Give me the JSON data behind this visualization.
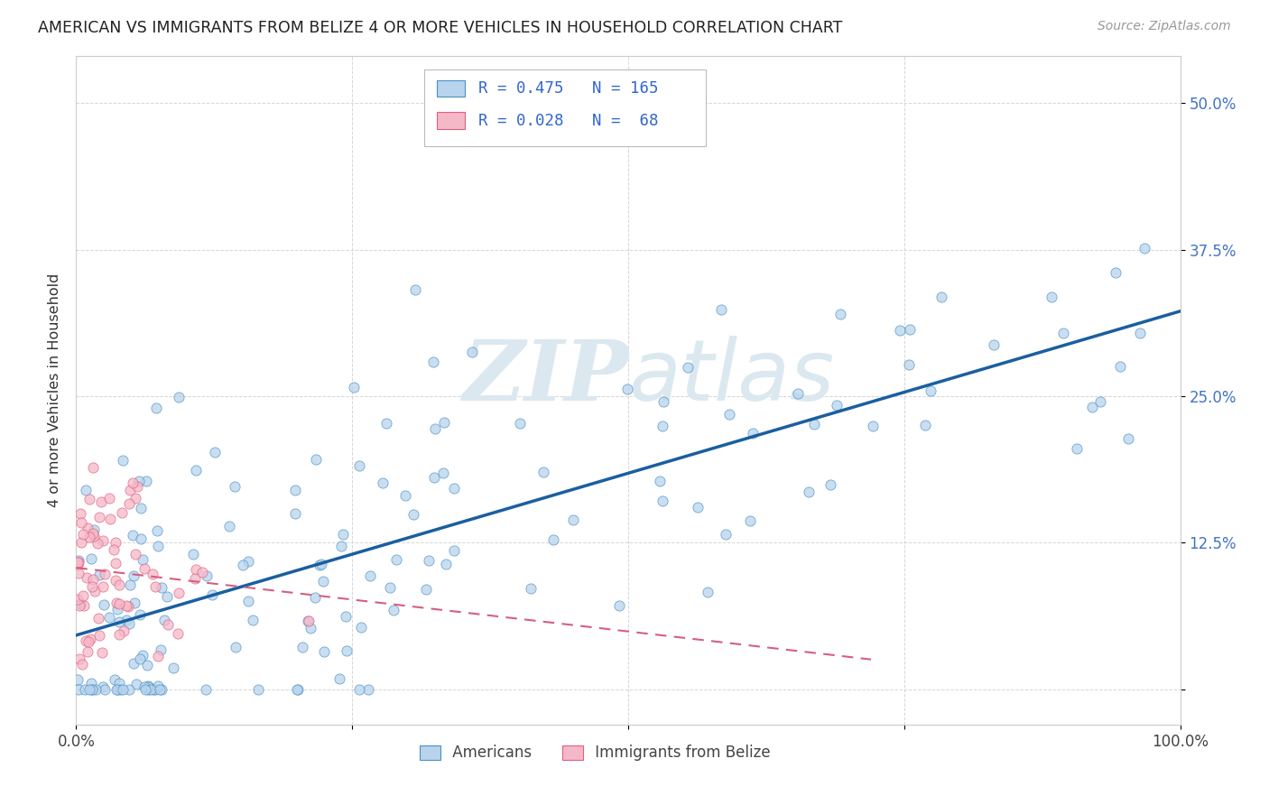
{
  "title": "AMERICAN VS IMMIGRANTS FROM BELIZE 4 OR MORE VEHICLES IN HOUSEHOLD CORRELATION CHART",
  "source": "Source: ZipAtlas.com",
  "ylabel": "4 or more Vehicles in Household",
  "xlim": [
    0.0,
    1.0
  ],
  "ylim": [
    -0.03,
    0.54
  ],
  "R1": 0.475,
  "N1": 165,
  "R2": 0.028,
  "N2": 68,
  "color_americans_fill": "#b8d4ed",
  "color_americans_edge": "#4a90c4",
  "color_belize_fill": "#f5b8c8",
  "color_belize_edge": "#e06080",
  "color_line_am": "#1a5fa0",
  "color_line_bz": "#d46080",
  "color_legend_text": "#3366cc",
  "watermark_color": "#dce8f0",
  "background_color": "#ffffff",
  "grid_color": "#cccccc",
  "ytick_color": "#4472c4"
}
